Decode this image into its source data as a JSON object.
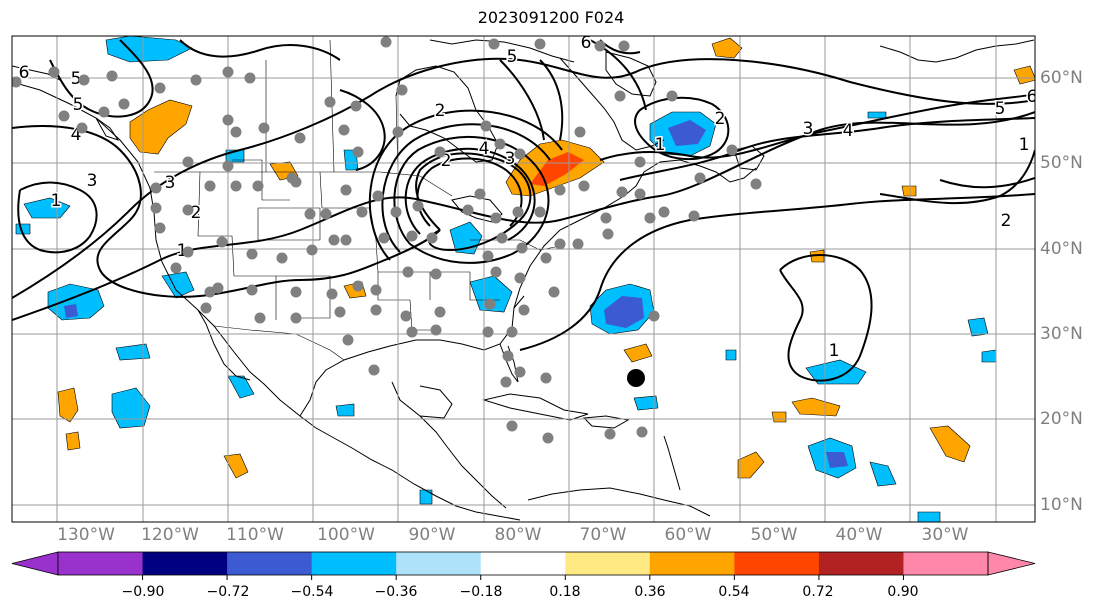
{
  "title": "2023091200 F024",
  "lon_labels": [
    "130°W",
    "120°W",
    "110°W",
    "100°W",
    "90°W",
    "80°W",
    "70°W",
    "60°W",
    "50°W",
    "40°W",
    "30°W"
  ],
  "lat_labels": [
    "60°N",
    "50°N",
    "40°N",
    "30°N",
    "20°N",
    "10°N"
  ],
  "contour_labels": [
    "6",
    "5",
    "5",
    "4",
    "3",
    "2",
    "1",
    "1",
    "3",
    "2",
    "2",
    "4",
    "3",
    "6",
    "5",
    "2",
    "1",
    "3",
    "4",
    "5",
    "6",
    "1",
    "2",
    "1"
  ],
  "colorbar": {
    "ticks": [
      "−0.90",
      "−0.72",
      "−0.54",
      "−0.36",
      "−0.18",
      "0.18",
      "0.36",
      "0.54",
      "0.72",
      "0.90"
    ],
    "colors": [
      "#9932cc",
      "#000080",
      "#3c5ad2",
      "#00bfff",
      "#aee2fb",
      "#ffffff",
      "#ffe983",
      "#ffa500",
      "#ff4500",
      "#b22222",
      "#ff88aa"
    ]
  },
  "palette": {
    "neg_light": "#00bfff",
    "neg_mid": "#3c5ad2",
    "neg_dark": "#9932cc",
    "pos_light": "#ffa500",
    "pos_mid": "#ff4500",
    "station": "#808080",
    "storm": "#000000"
  }
}
